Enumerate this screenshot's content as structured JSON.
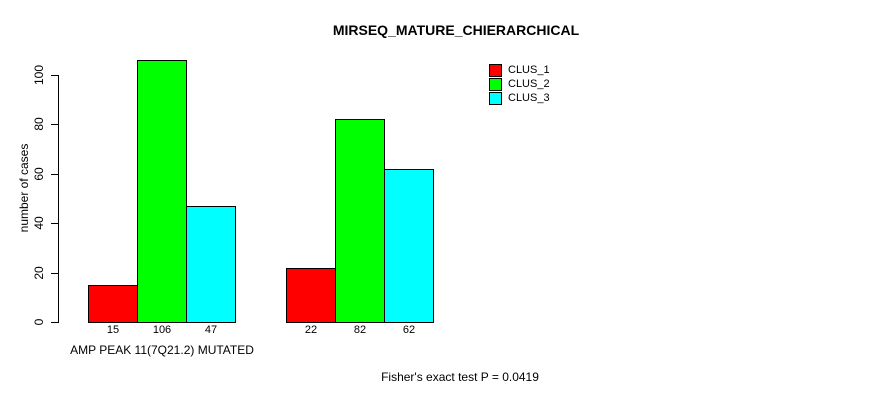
{
  "chart_data": {
    "type": "bar",
    "title": "MIRSEQ_MATURE_CHIERARCHICAL",
    "ylabel": "number of cases",
    "xlabel": "",
    "ylim": [
      0,
      100
    ],
    "yticks": [
      0,
      20,
      40,
      60,
      80,
      100
    ],
    "grid": false,
    "legend_position": "top-right",
    "values_shown_below_bars": true,
    "series": [
      {
        "name": "CLUS_1",
        "color": "#FF0000"
      },
      {
        "name": "CLUS_2",
        "color": "#00FF00"
      },
      {
        "name": "CLUS_3",
        "color": "#00FFFF"
      }
    ],
    "groups": [
      {
        "label": "AMP PEAK 11(7Q21.2) MUTATED",
        "values": [
          15,
          106,
          47
        ]
      },
      {
        "label": "",
        "values": [
          22,
          82,
          62
        ]
      }
    ],
    "footer": "Fisher's exact test P = 0.0419",
    "colors": {
      "background": "#FFFFFF",
      "axis": "#000000",
      "text": "#000000"
    }
  }
}
